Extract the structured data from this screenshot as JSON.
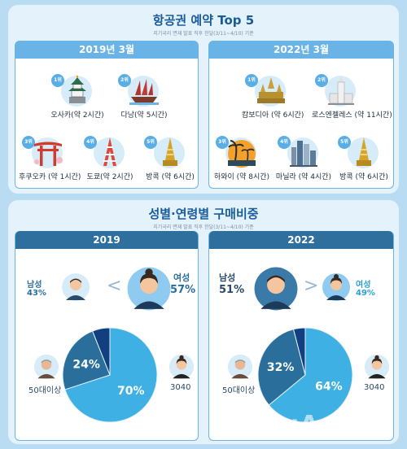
{
  "section1": {
    "title": "항공권 예약 Top 5",
    "subtitle": "지기국리 면재 발표 직후 한달(3/11~4/10) 기준",
    "panels": [
      {
        "year": "2019년 3월",
        "items": [
          {
            "rank": "1위",
            "name": "오사카(약 2시간)",
            "icon": "osaka-castle-icon"
          },
          {
            "rank": "2위",
            "name": "다낭(약 5시간)",
            "icon": "danang-ship-icon"
          },
          {
            "rank": "3위",
            "name": "후쿠오카 (약 1시간)",
            "icon": "torii-gate-icon"
          },
          {
            "rank": "4위",
            "name": "도쿄(약 2시간)",
            "icon": "tokyo-tower-icon"
          },
          {
            "rank": "5위",
            "name": "방콕 (약 6시간)",
            "icon": "bangkok-temple-icon"
          }
        ]
      },
      {
        "year": "2022년 3월",
        "items": [
          {
            "rank": "1위",
            "name": "캄보디아 (약 6시간)",
            "icon": "angkor-temple-icon"
          },
          {
            "rank": "2위",
            "name": "로스엔젤레스 (약 11시간)",
            "icon": "los-angeles-city-hall-icon"
          },
          {
            "rank": "3위",
            "name": "하와이 (약 8시간)",
            "icon": "hawaii-palm-icon"
          },
          {
            "rank": "4위",
            "name": "마닐라 (약 4시간)",
            "icon": "manila-skyline-icon"
          },
          {
            "rank": "5위",
            "name": "방콕 (약 6시간)",
            "icon": "bangkok-temple-icon"
          }
        ]
      }
    ]
  },
  "section2": {
    "title": "성별·연령별 구매비중",
    "subtitle": "지기국리 면재 발표 직후 한달(3/11~4/10) 기준"
  },
  "chart_data": [
    {
      "type": "pie",
      "title": "2019",
      "gender": {
        "male_label": "남성",
        "male_pct": "43%",
        "female_label": "여성",
        "female_pct": "57%",
        "compare": "<"
      },
      "age_labels": {
        "older": "50대이상",
        "younger": "3040"
      },
      "slices": [
        {
          "label": "3040",
          "value": 70,
          "display": "70%",
          "color": "#3fb0e3"
        },
        {
          "label": "50대이상",
          "value": 24,
          "display": "24%",
          "color": "#2a6f9c"
        },
        {
          "label": "",
          "value": 6,
          "display": "",
          "color": "#123f80"
        }
      ]
    },
    {
      "type": "pie",
      "title": "2022",
      "gender": {
        "male_label": "남성",
        "male_pct": "51%",
        "female_label": "여성",
        "female_pct": "49%",
        "compare": ">"
      },
      "age_labels": {
        "older": "50대이상",
        "younger": "3040"
      },
      "slices": [
        {
          "label": "3040",
          "value": 64,
          "display": "64%",
          "color": "#3fb0e3"
        },
        {
          "label": "50대이상",
          "value": 32,
          "display": "32%",
          "color": "#2a6f9c"
        },
        {
          "label": "",
          "value": 4,
          "display": "",
          "color": "#123f80"
        }
      ]
    }
  ],
  "watermark": "dongA.com"
}
